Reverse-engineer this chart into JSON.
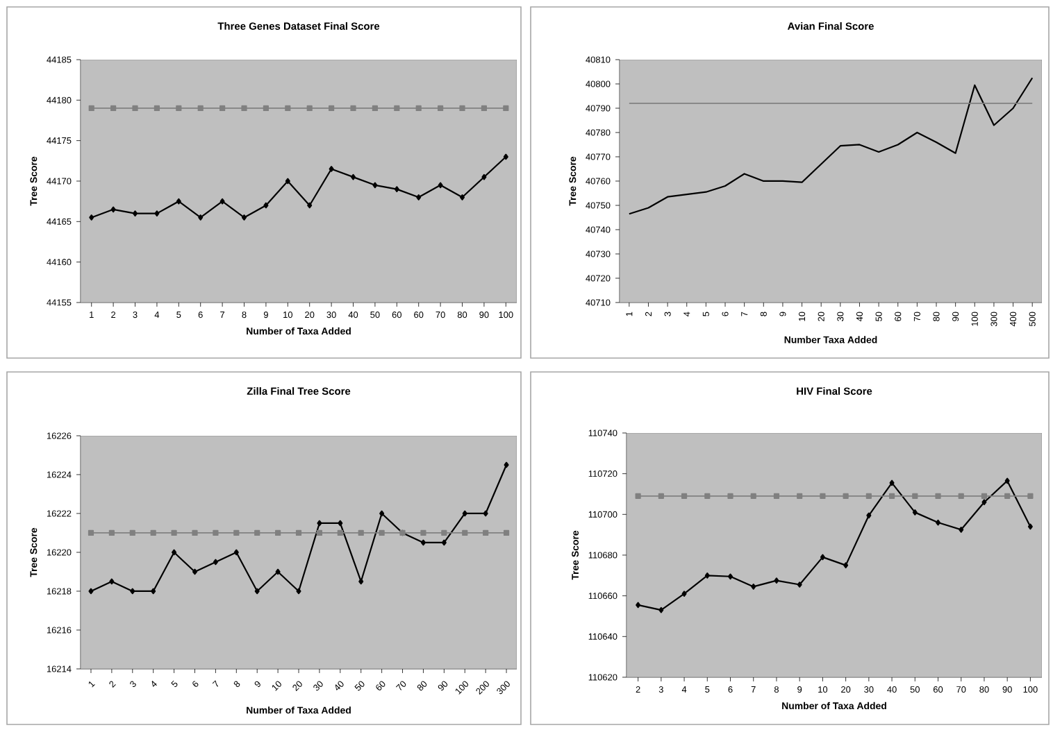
{
  "chart_data": [
    {
      "type": "line",
      "title": "Three Genes Dataset Final Score",
      "xlabel": "Number of Taxa Added",
      "ylabel": "Tree Score",
      "categories": [
        "1",
        "2",
        "3",
        "4",
        "5",
        "6",
        "7",
        "8",
        "9",
        "10",
        "20",
        "30",
        "40",
        "50",
        "60",
        "60",
        "70",
        "80",
        "90",
        "100"
      ],
      "ylim": [
        44155,
        44185
      ],
      "yticks": [
        44155,
        44160,
        44165,
        44170,
        44175,
        44180,
        44185
      ],
      "line_style": "solid",
      "series": [
        {
          "color": "#000000",
          "marker": "diamond",
          "values": [
            44165.5,
            44166.5,
            44166,
            44166,
            44167.5,
            44165.5,
            44167.5,
            44165.5,
            44167,
            44170,
            44167,
            44171.5,
            44170.5,
            44169.5,
            44169,
            44168,
            44169.5,
            44168,
            44170.5,
            44173
          ]
        },
        {
          "color": "#808080",
          "marker": "square",
          "values": [
            44179,
            44179,
            44179,
            44179,
            44179,
            44179,
            44179,
            44179,
            44179,
            44179,
            44179,
            44179,
            44179,
            44179,
            44179,
            44179,
            44179,
            44179,
            44179,
            44179
          ]
        }
      ]
    },
    {
      "type": "line",
      "title": "Avian Final Score",
      "xlabel": "Number Taxa Added",
      "ylabel": "Tree Score",
      "categories": [
        "1",
        "2",
        "3",
        "4",
        "5",
        "6",
        "7",
        "8",
        "9",
        "10",
        "20",
        "30",
        "40",
        "50",
        "60",
        "70",
        "80",
        "90",
        "100",
        "300",
        "400",
        "500"
      ],
      "ylim": [
        40710,
        40810
      ],
      "yticks": [
        40710,
        40720,
        40730,
        40740,
        40750,
        40760,
        40770,
        40780,
        40790,
        40800,
        40810
      ],
      "line_style": "solid",
      "series": [
        {
          "color": "#000000",
          "marker": "none",
          "values": [
            40746.5,
            40749,
            40753.5,
            40754.5,
            40755.5,
            40758,
            40763,
            40760,
            40760,
            40759.5,
            40767,
            40774.5,
            40775,
            40772,
            40775,
            40780,
            40776,
            40771.5,
            40799.5,
            40783,
            40790,
            40802.5
          ]
        },
        {
          "color": "#808080",
          "marker": "none",
          "values": [
            40792,
            40792,
            40792,
            40792,
            40792,
            40792,
            40792,
            40792,
            40792,
            40792,
            40792,
            40792,
            40792,
            40792,
            40792,
            40792,
            40792,
            40792,
            40792,
            40792,
            40792,
            40792
          ]
        }
      ]
    },
    {
      "type": "line",
      "title": "Zilla Final Tree Score",
      "xlabel": "Number of Taxa Added",
      "ylabel": "Tree Score",
      "categories": [
        "1",
        "2",
        "3",
        "4",
        "5",
        "6",
        "7",
        "8",
        "9",
        "10",
        "20",
        "30",
        "40",
        "50",
        "60",
        "70",
        "80",
        "90",
        "100",
        "200",
        "300"
      ],
      "ylim": [
        16214,
        16226
      ],
      "yticks": [
        16214,
        16216,
        16218,
        16220,
        16222,
        16224,
        16226
      ],
      "line_style": "solid",
      "series": [
        {
          "color": "#000000",
          "marker": "diamond",
          "values": [
            16218,
            16218.5,
            16218,
            16218,
            16220,
            16219,
            16219.5,
            16220,
            16218,
            16219,
            16218,
            16221.5,
            16221.5,
            16218.5,
            16222,
            16221,
            16220.5,
            16220.5,
            16222,
            16222,
            16224.5
          ]
        },
        {
          "color": "#808080",
          "marker": "square",
          "values": [
            16221,
            16221,
            16221,
            16221,
            16221,
            16221,
            16221,
            16221,
            16221,
            16221,
            16221,
            16221,
            16221,
            16221,
            16221,
            16221,
            16221,
            16221,
            16221,
            16221,
            16221
          ]
        }
      ]
    },
    {
      "type": "line",
      "title": "HIV Final Score",
      "xlabel": "Number of Taxa Added",
      "ylabel": "Tree Score",
      "categories": [
        "2",
        "3",
        "4",
        "5",
        "6",
        "7",
        "8",
        "9",
        "10",
        "20",
        "30",
        "40",
        "50",
        "60",
        "70",
        "80",
        "90",
        "100"
      ],
      "ylim": [
        110620,
        110740
      ],
      "yticks": [
        110620,
        110640,
        110660,
        110680,
        110700,
        110720,
        110740
      ],
      "line_style": "solid",
      "series": [
        {
          "color": "#000000",
          "marker": "diamond",
          "values": [
            110655.5,
            110653,
            110661,
            110670,
            110669.5,
            110664.5,
            110667.5,
            110665.5,
            110679,
            110675,
            110699.5,
            110715.5,
            110701,
            110696,
            110692.5,
            110706,
            110716.5,
            110694
          ]
        },
        {
          "color": "#808080",
          "marker": "square",
          "values": [
            110709,
            110709,
            110709,
            110709,
            110709,
            110709,
            110709,
            110709,
            110709,
            110709,
            110709,
            110709,
            110709,
            110709,
            110709,
            110709,
            110709,
            110709
          ]
        }
      ]
    }
  ]
}
